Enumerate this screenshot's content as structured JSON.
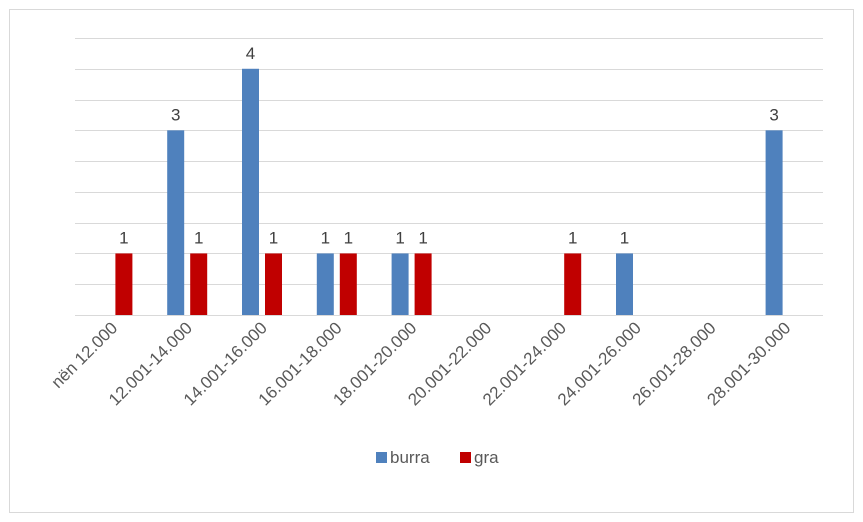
{
  "chart_data": {
    "type": "bar",
    "title": "",
    "xlabel": "",
    "ylabel": "",
    "categories": [
      "nën 12.000",
      "12.001-14.000",
      "14.001-16.000",
      "16.001-18.000",
      "18.001-20.000",
      "20.001-22.000",
      "22.001-24.000",
      "24.001-26.000",
      "26.001-28.000",
      "28.001-30.000"
    ],
    "series": [
      {
        "name": "burra",
        "color": "#4f81bd",
        "values": [
          0,
          3,
          4,
          1,
          1,
          0,
          0,
          1,
          0,
          3
        ]
      },
      {
        "name": "gra",
        "color": "#c00000",
        "values": [
          1,
          1,
          1,
          1,
          1,
          0,
          1,
          0,
          0,
          0
        ]
      }
    ],
    "ylim": [
      0,
      4.5
    ],
    "gridlines": true,
    "y_tick_labels_visible": false,
    "data_labels": true,
    "legend_position": "bottom"
  }
}
